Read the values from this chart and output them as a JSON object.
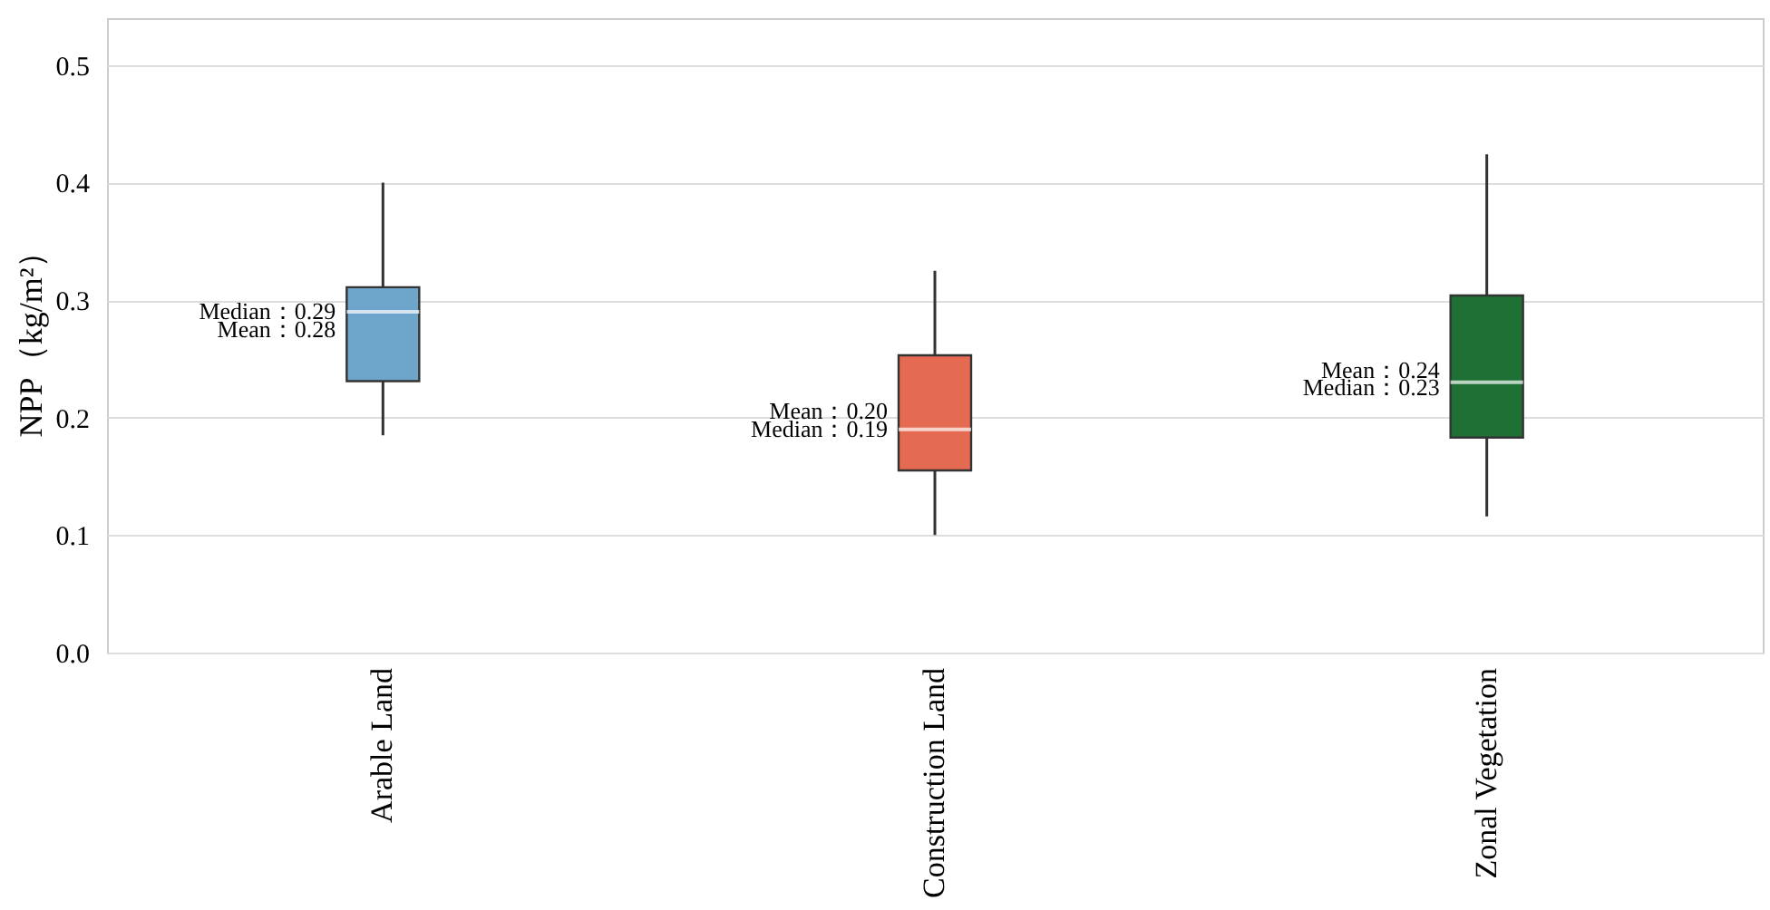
{
  "chart_data": {
    "type": "box",
    "ylabel": "NPP（kg/m²）",
    "categories": [
      "Arable Land",
      "Construction Land",
      "Zonal Vegetation"
    ],
    "colors": [
      "#6ea6cb",
      "#e56a52",
      "#1e7035"
    ],
    "boxes": [
      {
        "low": 0.185,
        "q1": 0.231,
        "median": 0.29,
        "q3": 0.311,
        "high": 0.4
      },
      {
        "low": 0.1,
        "q1": 0.155,
        "median": 0.19,
        "q3": 0.253,
        "high": 0.325
      },
      {
        "low": 0.116,
        "q1": 0.183,
        "median": 0.23,
        "q3": 0.304,
        "high": 0.424
      }
    ],
    "ylim": [
      0,
      0.54
    ],
    "yticks": [
      {
        "value": 0,
        "label": "0.0"
      },
      0.1,
      0.2,
      0.3,
      0.4,
      0.5
    ],
    "grid": "y",
    "annotations": [
      {
        "text": "Median：0.29",
        "x": "Arable Land",
        "y": 0.29
      },
      {
        "text": "Mean：0.28",
        "x": "Arable Land",
        "y": 0.275
      },
      {
        "text": "Mean：0.20",
        "x": "Construction Land",
        "y": 0.205
      },
      {
        "text": "Median：0.19",
        "x": "Construction Land",
        "y": 0.19
      },
      {
        "text": "Mean：0.24",
        "x": "Zonal Vegetation",
        "y": 0.24
      },
      {
        "text": "Median：0.23",
        "x": "Zonal Vegetation",
        "y": 0.225
      }
    ]
  }
}
